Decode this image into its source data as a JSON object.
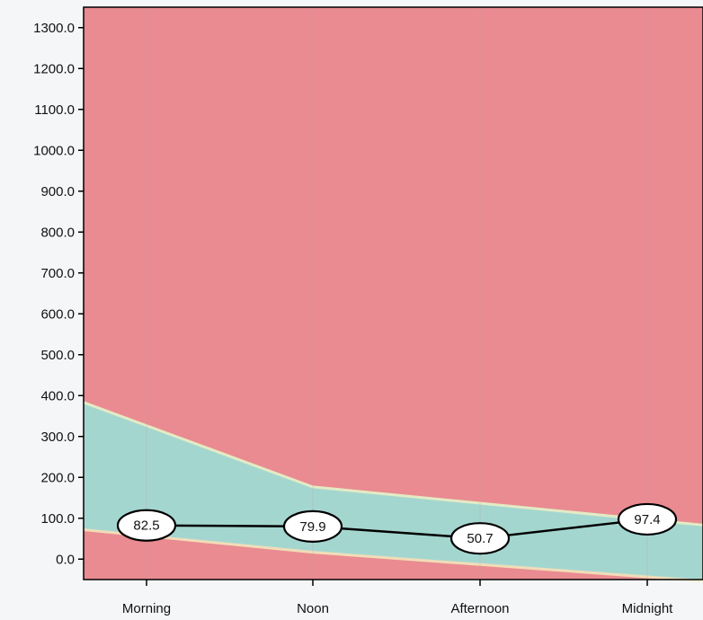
{
  "chart_data": {
    "type": "area",
    "categories": [
      "Morning",
      "Noon",
      "Afternoon",
      "Midnight"
    ],
    "ylim": [
      -50,
      1350
    ],
    "yticks": [
      "0.0",
      "100.0",
      "200.0",
      "300.0",
      "400.0",
      "500.0",
      "600.0",
      "700.0",
      "800.0",
      "900.0",
      "1000.0",
      "1100.0",
      "1200.0",
      "1300.0"
    ],
    "grid": false,
    "stacked_bands": [
      {
        "color": "#e98b91",
        "values": [
          110,
          70,
          40,
          10
        ]
      },
      {
        "color": "#a4d6d0",
        "values": [
          270,
          160,
          150,
          140
        ]
      },
      {
        "color": "#e98b91",
        "values": [
          970,
          1120,
          1160,
          1200
        ]
      }
    ],
    "series": [
      {
        "color": "#000000",
        "values": [
          82.5,
          79.9,
          50.7,
          97.4
        ],
        "labels": [
          "82.5",
          "79.9",
          "50.7",
          "97.4"
        ]
      }
    ]
  }
}
